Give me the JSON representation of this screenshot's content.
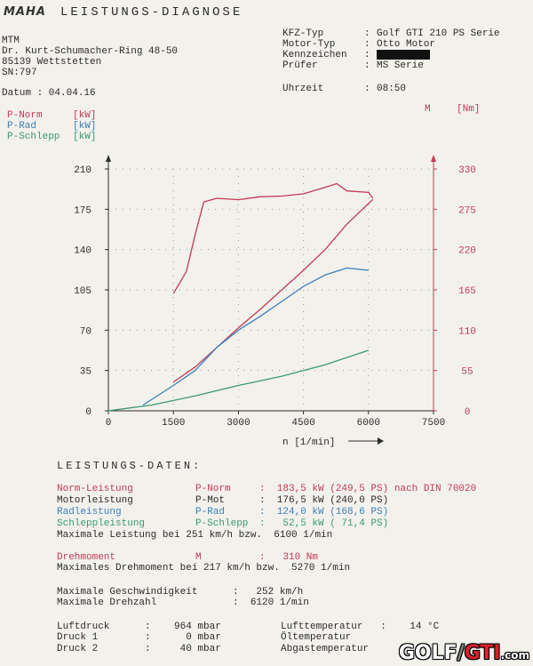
{
  "header": {
    "logo": "MAHA",
    "title": "LEISTUNGS-DIAGNOSE",
    "company": "MTM",
    "street": "Dr. Kurt-Schumacher-Ring 48-50",
    "city": "85139 Wettstetten",
    "sn": "SN:797",
    "date_label": "Datum : 04.04.16",
    "kfz_label": "KFZ-Typ",
    "kfz_value": "Golf GTI 210 PS Serie",
    "motor_label": "Motor-Typ",
    "motor_value": "Otto Motor",
    "kenn_label": "Kennzeichen",
    "pruefer_label": "Prüfer",
    "pruefer_value": "MS Serie",
    "uhrzeit_label": "Uhrzeit",
    "uhrzeit_value": "08:50"
  },
  "legend": {
    "p_norm": "P-Norm",
    "p_norm_unit": "[kW]",
    "p_rad": "P-Rad",
    "p_rad_unit": "[kW]",
    "p_schlepp": "P-Schlepp",
    "p_schlepp_unit": "[kW]",
    "m_label": "M",
    "m_unit": "[Nm]"
  },
  "colors": {
    "norm": "#c23a55",
    "rad": "#3b7fb8",
    "schlepp": "#3a9a72"
  },
  "chart_data": {
    "type": "line",
    "xlabel": "n [1/min]",
    "xlim": [
      0,
      7500
    ],
    "x_ticks": [
      0,
      1500,
      3000,
      4500,
      6000,
      7500
    ],
    "ylim_left": [
      0,
      210
    ],
    "y_ticks_left": [
      0,
      35,
      70,
      105,
      140,
      175,
      210
    ],
    "ylim_right": [
      0,
      330
    ],
    "y_ticks_right": [
      0,
      55,
      110,
      165,
      220,
      275,
      330
    ],
    "grid": true,
    "series": [
      {
        "name": "P-Norm",
        "axis": "left",
        "color": "#c23a55",
        "x": [
          1500,
          2000,
          2500,
          3000,
          3500,
          4000,
          4500,
          5000,
          5500,
          6000,
          6100
        ],
        "y": [
          25,
          38,
          55,
          72,
          88,
          105,
          122,
          140,
          162,
          180,
          183.5
        ]
      },
      {
        "name": "P-Rad",
        "axis": "left",
        "color": "#3b7fb8",
        "x": [
          800,
          1500,
          2000,
          2500,
          3000,
          3500,
          4000,
          4500,
          5000,
          5500,
          6000
        ],
        "y": [
          5,
          22,
          35,
          55,
          70,
          82,
          95,
          108,
          118,
          124,
          122
        ]
      },
      {
        "name": "P-Schlepp",
        "axis": "left",
        "color": "#3a9a72",
        "x": [
          0,
          1000,
          2000,
          3000,
          4000,
          5000,
          6000
        ],
        "y": [
          0,
          5,
          13,
          22,
          30,
          40,
          52.5
        ]
      },
      {
        "name": "M",
        "axis": "right",
        "color": "#c23a55",
        "x": [
          1500,
          1800,
          2000,
          2200,
          2500,
          3000,
          3500,
          4000,
          4500,
          5000,
          5270,
          5500,
          6000,
          6100
        ],
        "y": [
          160,
          190,
          240,
          285,
          290,
          288,
          292,
          293,
          296,
          305,
          310,
          300,
          298,
          290
        ]
      }
    ]
  },
  "daten": {
    "title": "LEISTUNGS-DATEN:",
    "rows": [
      {
        "name": "Norm-Leistung",
        "sym": "P-Norm",
        "val": ":  183,5 kW (249,5 PS) nach DIN 70020",
        "cls": "red"
      },
      {
        "name": "Motorleistung",
        "sym": "P-Mot",
        "val": ":  176,5 kW (240,0 PS)",
        "cls": ""
      },
      {
        "name": "Radleistung",
        "sym": "P-Rad",
        "val": ":  124,0 kW (168,6 PS)",
        "cls": "blue"
      },
      {
        "name": "Schleppleistung",
        "sym": "P-Schlepp",
        "val": ":   52,5 kW ( 71,4 PS)",
        "cls": "green"
      }
    ],
    "max_leistung": "Maximale Leistung bei 251 km/h bzw.  6100 1/min",
    "dreh_name": "Drehmoment",
    "dreh_sym": "M",
    "dreh_val": ":   310 Nm",
    "max_dreh": "Maximales Drehmoment bei 217 km/h bzw.  5270 1/min",
    "max_geschw": "Maximale Geschwindigkeit      :   252 km/h",
    "max_drehzahl": "Maximale Drehzahl             :  6120 1/min",
    "luftdruck": "Luftdruck      :    964 mbar",
    "druck1": "Druck 1        :      0 mbar",
    "druck2": "Druck 2        :     40 mbar",
    "lufttemp": "Lufttemperatur   :    14 °C",
    "oeltemp": "Öltemperatur",
    "abgastemp": "Abgastemperatur"
  },
  "watermark": {
    "golf": "GOLF",
    "gti": "GTI",
    "com": ".com"
  }
}
